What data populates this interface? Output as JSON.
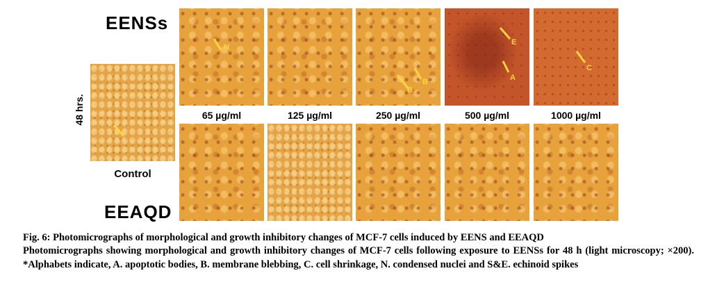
{
  "figure": {
    "row_labels": [
      "EENSs",
      "EEAQD"
    ],
    "side_label": "48 hrs.",
    "control_label": "Control",
    "concentrations": [
      "65 µg/ml",
      "125 µg/ml",
      "250 µg/ml",
      "500 µg/ml",
      "1000 µg/ml"
    ],
    "panel_letters": [
      "N",
      "B",
      "B",
      "E",
      "A",
      "C"
    ]
  },
  "caption": {
    "title": "Fig. 6: Photomicrographs of morphological and growth inhibitory changes of MCF-7 cells induced by EENS and EEAQD",
    "body": "Photomicrographs showing morphological and growth inhibitory changes of MCF-7 cells following exposure to EENSs for 48 h (light microscopy; ×200). *Alphabets indicate, A. apoptotic bodies, B. membrane blebbing, C. cell shrinkage, N. condensed nuclei and S&E. echinoid spikes"
  }
}
